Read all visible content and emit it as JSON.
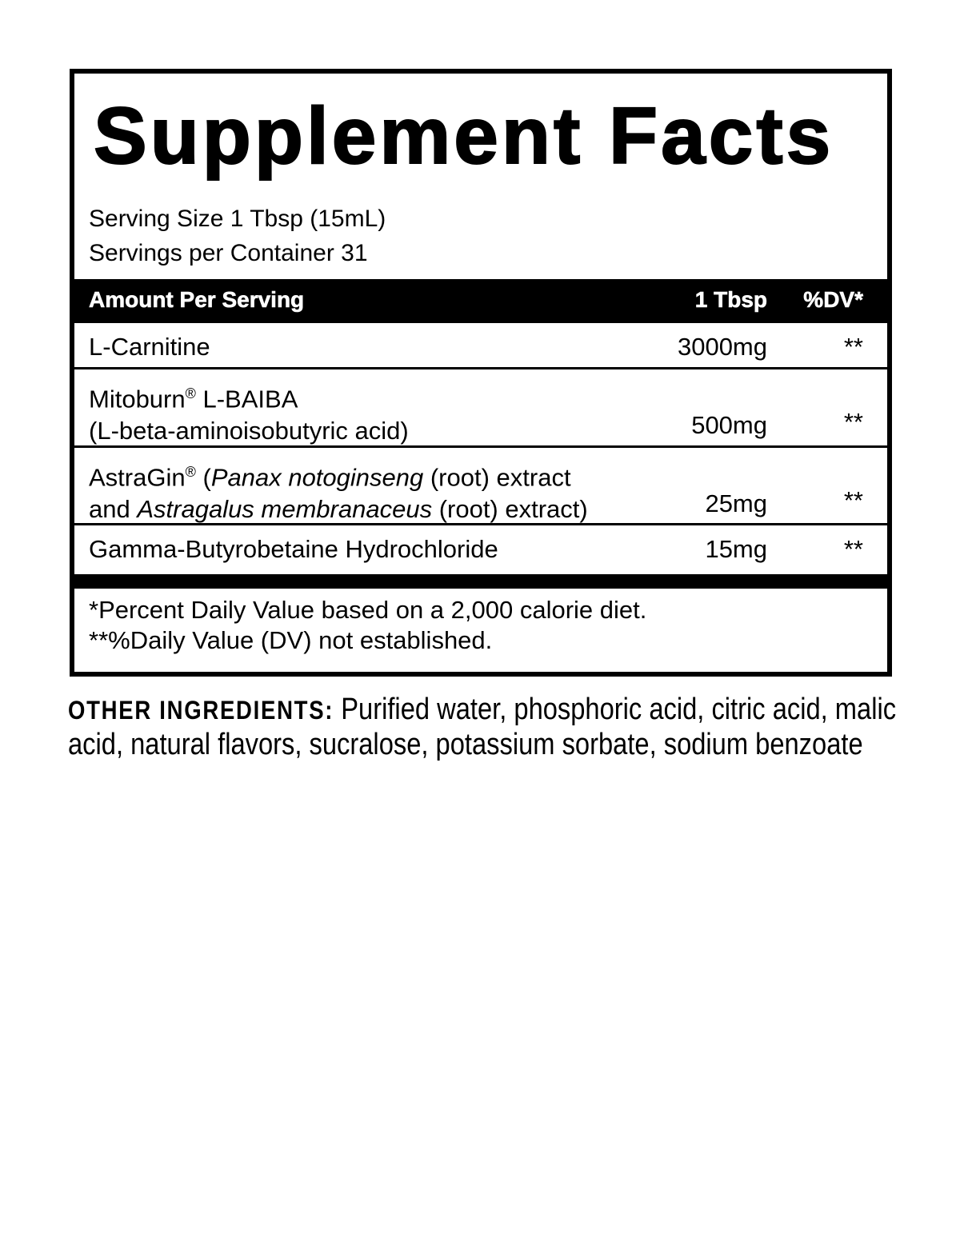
{
  "title": "Supplement Facts",
  "serving_size": "Serving Size 1 Tbsp (15mL)",
  "servings_per_container": "Servings per Container 31",
  "header": {
    "amount_per_serving": "Amount Per Serving",
    "amount_col": "1 Tbsp",
    "dv_col": "%DV*"
  },
  "rows": [
    {
      "line1": "L-Carnitine",
      "amount": "3000mg",
      "dv": "**"
    },
    {
      "line1a": "Mitoburn",
      "reg": "®",
      "line1b": " L-BAIBA",
      "line2": "(L-beta-aminoisobutyric acid)",
      "amount": "500mg",
      "dv": "**"
    },
    {
      "line1a": "AstraGin",
      "reg": "®",
      "line1b": " (",
      "line1i": "Panax notoginseng",
      "line1c": " (root) extract",
      "line2a": "and ",
      "line2i": "Astragalus membranaceus",
      "line2b": " (root) extract)",
      "amount": "25mg",
      "dv": "**"
    },
    {
      "line1": "Gamma-Butyrobetaine Hydrochloride",
      "amount": "15mg",
      "dv": "**"
    }
  ],
  "footnotes": [
    "*Percent Daily Value based on a 2,000 calorie diet.",
    "**%Daily Value (DV) not established."
  ],
  "other_ingredients": {
    "label": "OTHER INGREDIENTS:",
    "text": " Purified water, phosphoric acid, citric acid, malic acid, natural flavors, sucralose, potassium sorbate, sodium benzoate"
  }
}
